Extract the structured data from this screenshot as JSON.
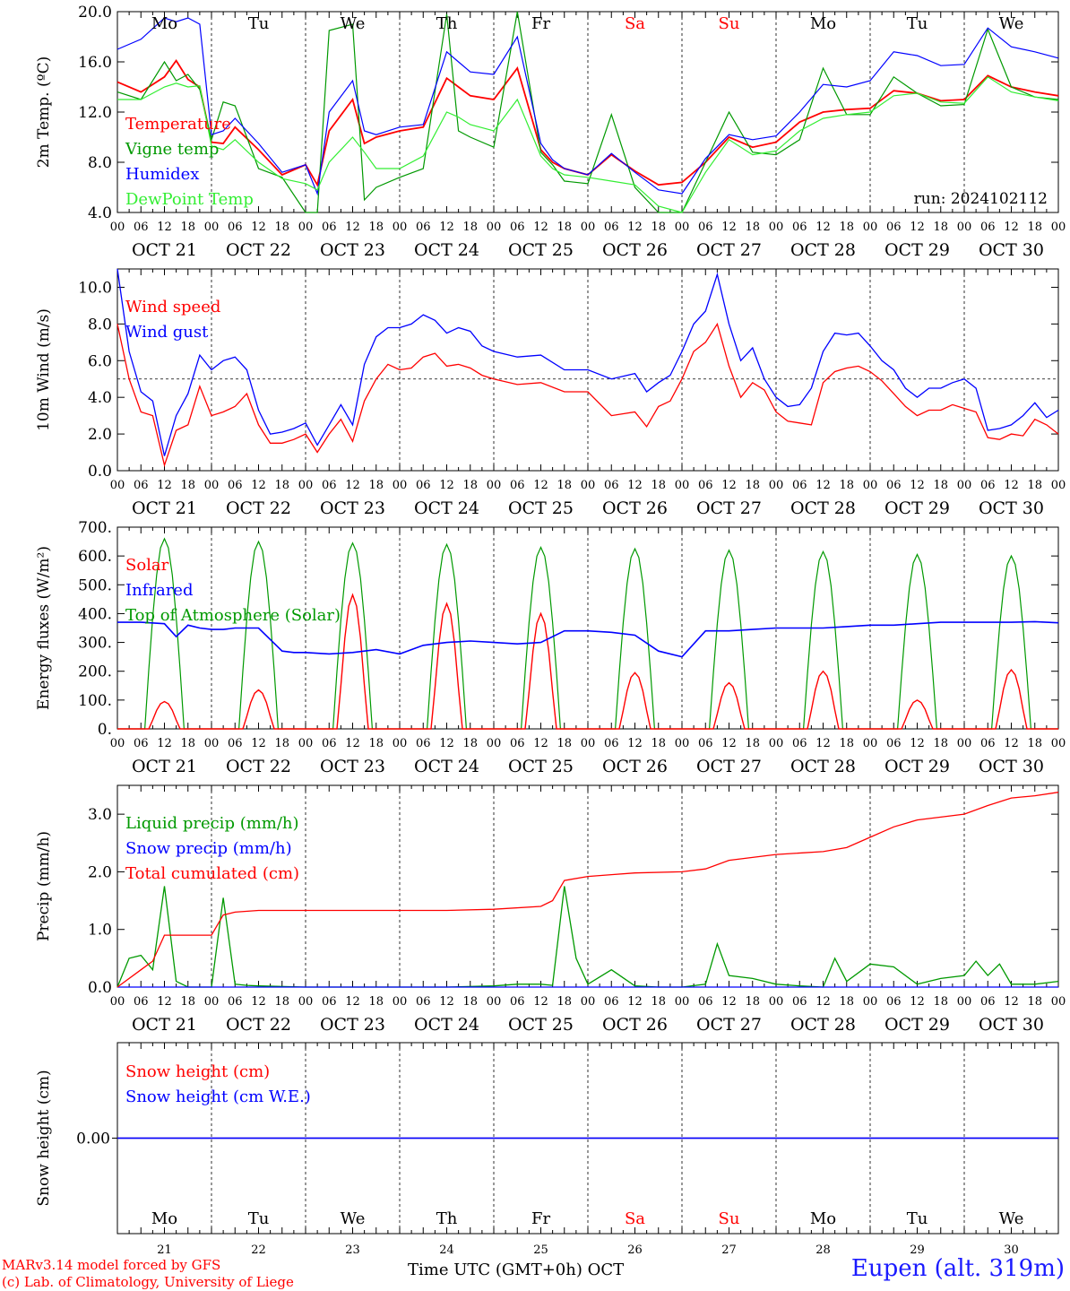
{
  "footer": {
    "model": "MARv3.14 model forced by GFS",
    "lab": "(c) Lab. of Climatology, University of Liege",
    "xaxis_title": "Time UTC (GMT+0h) OCT",
    "station": "Eupen (alt. 319m)"
  },
  "days": {
    "weekday_labels": [
      "Mo",
      "Tu",
      "We",
      "Th",
      "Fr",
      "Sa",
      "Su",
      "Mo",
      "Tu",
      "We"
    ],
    "weekend_flags": [
      false,
      false,
      false,
      false,
      false,
      true,
      true,
      false,
      false,
      false
    ],
    "date_labels": [
      "OCT 21",
      "OCT 22",
      "OCT 23",
      "OCT 24",
      "OCT 25",
      "OCT 26",
      "OCT 27",
      "OCT 28",
      "OCT 29",
      "OCT 30"
    ],
    "day_numbers": [
      "21",
      "22",
      "23",
      "24",
      "25",
      "26",
      "27",
      "28",
      "29",
      "30"
    ],
    "hour_ticks": [
      "00",
      "06",
      "12",
      "18"
    ],
    "weekday_color": "#000000",
    "weekend_color": "#ff0000"
  },
  "chart_data": [
    {
      "type": "line",
      "ylabel": "2m Temp. (ºC)",
      "ylim": [
        4,
        20
      ],
      "yticks": [
        "4.0",
        "8.0",
        "12.0",
        "16.0",
        "20.0"
      ],
      "annotation": "run: 2024102112",
      "x_unit": "hours since OCT 21 00 UTC",
      "x": [
        0,
        6,
        12,
        15,
        18,
        21,
        24,
        27,
        30,
        36,
        42,
        48,
        51,
        54,
        60,
        63,
        66,
        72,
        78,
        84,
        87,
        90,
        96,
        102,
        108,
        111,
        114,
        120,
        126,
        132,
        138,
        144,
        150,
        156,
        162,
        168,
        174,
        180,
        186,
        192,
        198,
        204,
        210,
        216,
        222,
        228,
        234,
        240
      ],
      "series": [
        {
          "name": "Temperature",
          "color": "#ff0000",
          "values": [
            14.4,
            13.6,
            14.8,
            16.1,
            14.6,
            14.0,
            9.6,
            9.5,
            10.8,
            9.0,
            7.0,
            7.8,
            6.2,
            10.5,
            13.0,
            9.5,
            10.0,
            10.5,
            10.8,
            14.7,
            14.0,
            13.3,
            13.0,
            15.5,
            9.0,
            8.0,
            7.5,
            7.0,
            8.6,
            7.3,
            6.2,
            6.4,
            8.0,
            10.0,
            9.2,
            9.6,
            11.2,
            12.0,
            12.2,
            12.3,
            13.7,
            13.5,
            12.9,
            13.0,
            14.9,
            14.0,
            13.6,
            13.3
          ]
        },
        {
          "name": "Vigne temp",
          "color": "#009900",
          "values": [
            13.6,
            13.0,
            16.0,
            14.5,
            15.0,
            13.8,
            9.8,
            12.8,
            12.5,
            7.5,
            6.8,
            4.0,
            3.5,
            18.5,
            19.0,
            5.0,
            6.0,
            6.8,
            7.5,
            19.8,
            10.5,
            10.0,
            9.2,
            20.0,
            8.8,
            7.8,
            6.5,
            6.3,
            11.8,
            6.0,
            3.5,
            4.0,
            8.0,
            12.0,
            8.8,
            8.6,
            9.8,
            15.5,
            11.8,
            11.8,
            14.8,
            13.5,
            12.5,
            12.6,
            18.6,
            14.0,
            13.2,
            13.0
          ]
        },
        {
          "name": "Humidex",
          "color": "#0000ff",
          "values": [
            17.0,
            17.8,
            19.5,
            19.2,
            19.5,
            19.0,
            10.2,
            10.5,
            11.5,
            9.5,
            7.2,
            7.8,
            5.5,
            12.0,
            14.5,
            10.5,
            10.2,
            10.8,
            11.0,
            16.8,
            16.0,
            15.2,
            15.0,
            18.0,
            9.5,
            8.2,
            7.5,
            7.0,
            8.7,
            7.2,
            5.8,
            5.5,
            8.3,
            10.2,
            9.8,
            10.1,
            12.0,
            14.2,
            14.0,
            14.5,
            16.8,
            16.5,
            15.7,
            15.8,
            18.7,
            17.2,
            16.8,
            16.3
          ]
        },
        {
          "name": "DewPoint Temp",
          "color": "#33ee33",
          "values": [
            13.0,
            13.0,
            14.0,
            14.3,
            14.0,
            14.1,
            9.3,
            9.0,
            9.8,
            8.0,
            6.7,
            6.3,
            5.8,
            8.0,
            10.0,
            8.8,
            7.5,
            7.5,
            8.5,
            12.0,
            11.6,
            11.0,
            10.5,
            13.0,
            8.5,
            7.5,
            7.0,
            6.8,
            6.5,
            6.2,
            4.5,
            4.0,
            7.2,
            9.8,
            8.6,
            8.9,
            10.5,
            11.5,
            11.8,
            12.0,
            13.3,
            13.5,
            12.8,
            12.7,
            14.8,
            13.6,
            13.2,
            12.9
          ]
        }
      ]
    },
    {
      "type": "line",
      "ylabel": "10m Wind (m/s)",
      "ylim": [
        0,
        11
      ],
      "yticks": [
        "0.0",
        "2.0",
        "4.0",
        "6.0",
        "8.0",
        "10.0"
      ],
      "reference_line": 5,
      "x_unit": "hours since OCT 21 00 UTC",
      "x": [
        0,
        3,
        6,
        9,
        12,
        15,
        18,
        21,
        24,
        27,
        30,
        33,
        36,
        39,
        42,
        45,
        48,
        51,
        54,
        57,
        60,
        63,
        66,
        69,
        72,
        75,
        78,
        81,
        84,
        87,
        90,
        93,
        96,
        102,
        108,
        114,
        120,
        126,
        132,
        135,
        138,
        141,
        144,
        147,
        150,
        153,
        156,
        159,
        162,
        165,
        168,
        171,
        174,
        177,
        180,
        183,
        186,
        189,
        192,
        195,
        198,
        201,
        204,
        207,
        210,
        213,
        216,
        219,
        222,
        225,
        228,
        231,
        234,
        237,
        240
      ],
      "series": [
        {
          "name": "Wind speed",
          "color": "#ff0000",
          "values": [
            8.0,
            5.0,
            3.2,
            3.0,
            0.3,
            2.2,
            2.5,
            4.6,
            3.0,
            3.2,
            3.5,
            4.2,
            2.5,
            1.5,
            1.5,
            1.7,
            2.0,
            1.0,
            2.0,
            2.8,
            1.6,
            3.8,
            5.0,
            5.8,
            5.5,
            5.6,
            6.2,
            6.4,
            5.7,
            5.8,
            5.6,
            5.2,
            5.0,
            4.7,
            4.8,
            4.3,
            4.3,
            3.0,
            3.2,
            2.4,
            3.5,
            3.8,
            5.0,
            6.5,
            7.0,
            8.0,
            5.7,
            4.0,
            4.8,
            4.4,
            3.2,
            2.7,
            2.6,
            2.5,
            4.8,
            5.4,
            5.6,
            5.7,
            5.4,
            4.9,
            4.2,
            3.5,
            3.0,
            3.3,
            3.3,
            3.6,
            3.4,
            3.2,
            1.8,
            1.7,
            2.0,
            1.9,
            2.8,
            2.5,
            2.0
          ]
        },
        {
          "name": "Wind gust",
          "color": "#0000ff",
          "values": [
            11.0,
            6.5,
            4.3,
            3.8,
            0.8,
            3.0,
            4.2,
            6.3,
            5.5,
            6.0,
            6.2,
            5.5,
            3.3,
            2.0,
            2.1,
            2.3,
            2.6,
            1.4,
            2.5,
            3.6,
            2.5,
            5.8,
            7.3,
            7.8,
            7.8,
            8.0,
            8.5,
            8.2,
            7.5,
            7.8,
            7.6,
            6.8,
            6.5,
            6.2,
            6.3,
            5.5,
            5.5,
            5.0,
            5.3,
            4.3,
            4.8,
            5.2,
            6.5,
            8.0,
            8.7,
            10.7,
            8.0,
            6.0,
            6.7,
            5.0,
            4.0,
            3.5,
            3.6,
            4.5,
            6.5,
            7.5,
            7.4,
            7.5,
            6.8,
            6.0,
            5.5,
            4.5,
            4.0,
            4.5,
            4.5,
            4.8,
            5.0,
            4.5,
            2.2,
            2.3,
            2.5,
            3.0,
            3.7,
            2.9,
            3.3
          ]
        }
      ]
    },
    {
      "type": "line",
      "ylabel": "Energy fluxes (W/m²)",
      "ylim": [
        0,
        700
      ],
      "yticks": [
        "0.",
        "100.",
        "200.",
        "300.",
        "400.",
        "500.",
        "600.",
        "700."
      ],
      "x_unit": "hours since OCT 21 00 UTC",
      "series": [
        {
          "name": "Solar",
          "color": "#ff0000",
          "peak_hours": [
            12,
            36,
            60,
            84,
            108,
            132,
            156,
            180,
            204,
            228
          ],
          "peaks": [
            95,
            135,
            465,
            435,
            400,
            195,
            160,
            200,
            100,
            205
          ],
          "half_width_hours": 5
        },
        {
          "name": "Infrared",
          "color": "#0000ff",
          "x": [
            0,
            6,
            12,
            15,
            18,
            21,
            24,
            27,
            30,
            36,
            42,
            45,
            48,
            54,
            60,
            66,
            72,
            78,
            84,
            90,
            96,
            102,
            108,
            114,
            120,
            126,
            132,
            138,
            144,
            150,
            156,
            162,
            168,
            174,
            180,
            186,
            192,
            198,
            204,
            210,
            216,
            222,
            228,
            234,
            240
          ],
          "values": [
            370,
            370,
            365,
            320,
            360,
            350,
            345,
            345,
            350,
            350,
            270,
            265,
            265,
            260,
            265,
            275,
            260,
            290,
            300,
            305,
            300,
            295,
            300,
            340,
            340,
            335,
            325,
            270,
            250,
            340,
            340,
            345,
            350,
            350,
            350,
            355,
            360,
            360,
            365,
            370,
            370,
            370,
            370,
            372,
            368
          ]
        },
        {
          "name": "Top of Atmosphere (Solar)",
          "color": "#009900",
          "peak_hours": [
            12,
            36,
            60,
            84,
            108,
            132,
            156,
            180,
            204,
            228
          ],
          "peaks": [
            660,
            650,
            645,
            640,
            630,
            625,
            620,
            615,
            605,
            600
          ],
          "half_width_hours": 5
        }
      ]
    },
    {
      "type": "line",
      "ylabel": "Precip (mm/h)",
      "ylim": [
        0,
        3.5
      ],
      "yticks": [
        "0.0",
        "1.0",
        "2.0",
        "3.0"
      ],
      "x_unit": "hours since OCT 21 00 UTC",
      "series": [
        {
          "name": "Liquid precip (mm/h)",
          "color": "#009900",
          "x": [
            0,
            3,
            6,
            9,
            12,
            15,
            18,
            21,
            24,
            27,
            30,
            33,
            36,
            48,
            60,
            72,
            84,
            96,
            102,
            108,
            111,
            114,
            117,
            120,
            126,
            132,
            138,
            144,
            150,
            153,
            156,
            162,
            168,
            174,
            180,
            183,
            186,
            192,
            198,
            204,
            210,
            216,
            219,
            222,
            225,
            228,
            234,
            240
          ],
          "values": [
            0.0,
            0.5,
            0.55,
            0.3,
            1.75,
            0.1,
            0.0,
            0.0,
            0.0,
            1.55,
            0.05,
            0.03,
            0.02,
            0.0,
            0.0,
            0.0,
            0.0,
            0.02,
            0.05,
            0.05,
            0.03,
            1.75,
            0.5,
            0.05,
            0.3,
            0.02,
            0.0,
            0.0,
            0.05,
            0.75,
            0.2,
            0.15,
            0.05,
            0.02,
            0.0,
            0.5,
            0.1,
            0.4,
            0.35,
            0.05,
            0.15,
            0.2,
            0.45,
            0.2,
            0.4,
            0.05,
            0.05,
            0.1
          ]
        },
        {
          "name": "Snow precip (mm/h)",
          "color": "#0000ff",
          "x": [
            0,
            240
          ],
          "values": [
            0,
            0
          ]
        },
        {
          "name": "Total cumulated (cm)",
          "color": "#ff0000",
          "x": [
            0,
            6,
            9,
            12,
            24,
            27,
            30,
            36,
            60,
            84,
            96,
            108,
            111,
            114,
            120,
            126,
            132,
            144,
            150,
            156,
            168,
            180,
            186,
            192,
            198,
            204,
            210,
            216,
            222,
            228,
            234,
            240
          ],
          "values": [
            0.0,
            0.3,
            0.45,
            0.9,
            0.9,
            1.25,
            1.3,
            1.33,
            1.33,
            1.33,
            1.35,
            1.4,
            1.5,
            1.85,
            1.92,
            1.95,
            1.98,
            2.0,
            2.05,
            2.2,
            2.3,
            2.35,
            2.42,
            2.6,
            2.78,
            2.9,
            2.95,
            3.0,
            3.15,
            3.28,
            3.32,
            3.38
          ]
        }
      ]
    },
    {
      "type": "line",
      "ylabel": "Snow height (cm)",
      "ylim": [
        -1,
        1
      ],
      "yticks": [
        "0.00"
      ],
      "x_unit": "hours since OCT 21 00 UTC",
      "series": [
        {
          "name": "Snow height (cm)",
          "color": "#ff0000",
          "x": [
            0,
            240
          ],
          "values": [
            0,
            0
          ]
        },
        {
          "name": "Snow height (cm W.E.)",
          "color": "#0000ff",
          "x": [
            0,
            240
          ],
          "values": [
            0,
            0
          ]
        }
      ]
    }
  ]
}
